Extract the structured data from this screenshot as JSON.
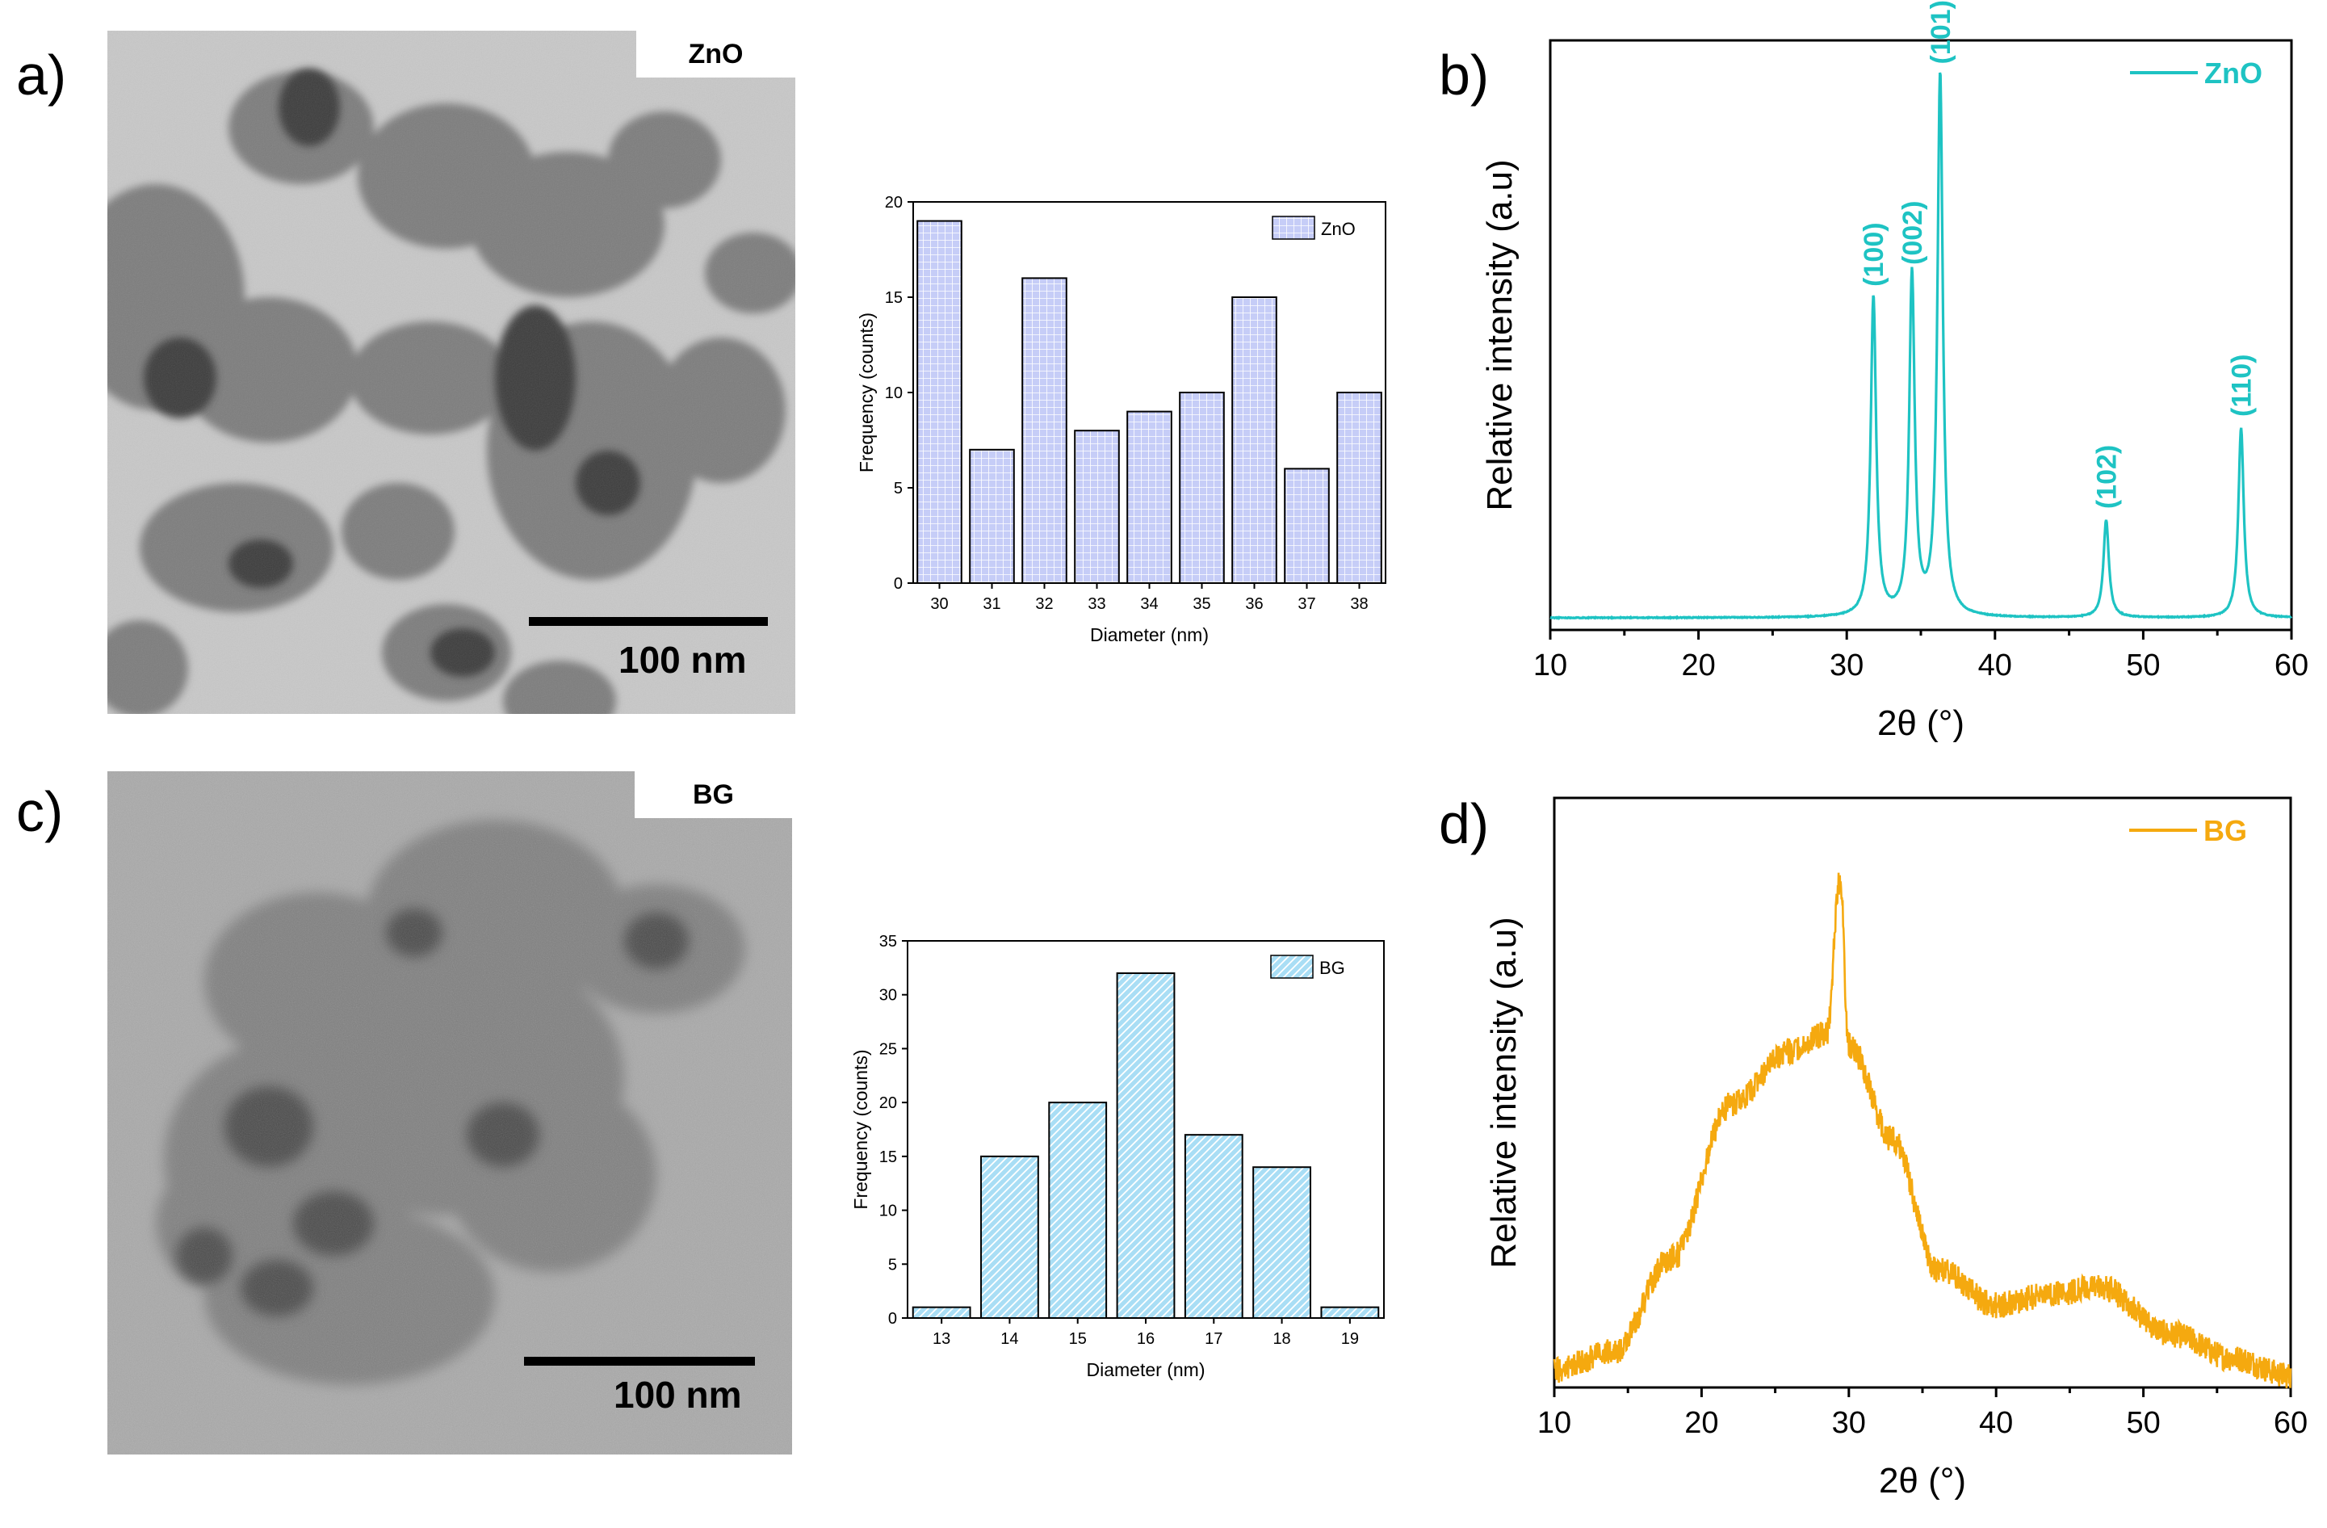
{
  "panels": {
    "a": {
      "label": "a)",
      "tag": "ZnO",
      "scale": "100 nm"
    },
    "b": {
      "label": "b)"
    },
    "c": {
      "label": "c)",
      "tag": "BG",
      "scale": "100 nm"
    },
    "d": {
      "label": "d)"
    }
  },
  "colors": {
    "zno_line": "#1ec3c3",
    "bg_line": "#f5a90f",
    "zno_bar": "#c6cdf7",
    "bg_bar": "#a9def5"
  },
  "chart_data": [
    {
      "id": "zno-hist",
      "type": "bar",
      "xlabel": "Diameter (nm)",
      "ylabel": "Frequency (counts)",
      "categories": [
        "30",
        "31",
        "32",
        "33",
        "34",
        "35",
        "36",
        "37",
        "38"
      ],
      "series": [
        {
          "name": "ZnO",
          "values": [
            19,
            7,
            16,
            8,
            9,
            10,
            15,
            6,
            10
          ]
        }
      ],
      "ylim": [
        0,
        20
      ],
      "yticks": [
        0,
        5,
        10,
        15,
        20
      ],
      "legend": "top-right",
      "pattern": "grid"
    },
    {
      "id": "zno-xrd",
      "type": "line",
      "xlabel": "2θ (°)",
      "ylabel": "Relative intensity (a.u)",
      "xlim": [
        10,
        60
      ],
      "xticks": [
        10,
        20,
        30,
        40,
        50,
        60
      ],
      "series": [
        {
          "name": "ZnO"
        }
      ],
      "peaks": [
        {
          "x": 31.8,
          "y": 0.59,
          "label": "(100)"
        },
        {
          "x": 34.4,
          "y": 0.63,
          "label": "(002)"
        },
        {
          "x": 36.3,
          "y": 1.0,
          "label": "(101)"
        },
        {
          "x": 47.5,
          "y": 0.18,
          "label": "(102)"
        },
        {
          "x": 56.6,
          "y": 0.35,
          "label": "(110)"
        }
      ],
      "legend": "top-right"
    },
    {
      "id": "bg-hist",
      "type": "bar",
      "xlabel": "Diameter (nm)",
      "ylabel": "Frequency (counts)",
      "categories": [
        "13",
        "14",
        "15",
        "16",
        "17",
        "18",
        "19"
      ],
      "series": [
        {
          "name": "BG",
          "values": [
            1,
            15,
            20,
            32,
            17,
            14,
            1
          ]
        }
      ],
      "ylim": [
        0,
        35
      ],
      "yticks": [
        0,
        5,
        10,
        15,
        20,
        25,
        30,
        35
      ],
      "legend": "top-right",
      "pattern": "hatch"
    },
    {
      "id": "bg-xrd",
      "type": "line",
      "xlabel": "2θ (°)",
      "ylabel": "Relative intensity (a.u)",
      "xlim": [
        10,
        60
      ],
      "xticks": [
        10,
        20,
        30,
        40,
        50,
        60
      ],
      "series": [
        {
          "name": "BG"
        }
      ],
      "profile": [
        [
          10,
          0.03
        ],
        [
          14,
          0.06
        ],
        [
          18,
          0.22
        ],
        [
          22,
          0.48
        ],
        [
          26,
          0.57
        ],
        [
          28.5,
          0.6
        ],
        [
          29.4,
          0.86
        ],
        [
          30,
          0.58
        ],
        [
          33,
          0.42
        ],
        [
          36,
          0.2
        ],
        [
          40,
          0.14
        ],
        [
          44,
          0.16
        ],
        [
          47,
          0.17
        ],
        [
          52,
          0.09
        ],
        [
          56,
          0.05
        ],
        [
          60,
          0.02
        ]
      ],
      "legend": "top-right"
    }
  ]
}
